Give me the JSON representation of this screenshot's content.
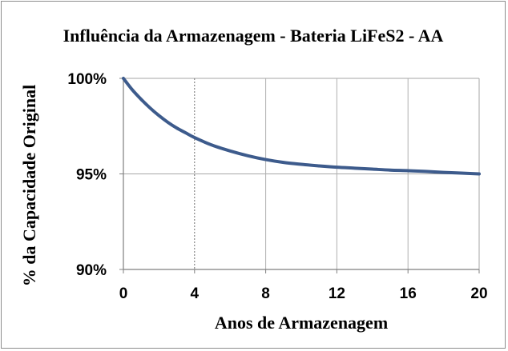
{
  "chart_data": {
    "type": "line",
    "title": "Influência da Armazenagem - Bateria LiFeS2 - AA",
    "xlabel": "Anos de Armazenagem",
    "ylabel": "% da Capacidade Original",
    "xlim": [
      0,
      20
    ],
    "ylim": [
      90,
      100
    ],
    "x_ticks": [
      0,
      4,
      8,
      12,
      16,
      20
    ],
    "x_tick_labels": [
      "0",
      "4",
      "8",
      "12",
      "16",
      "20"
    ],
    "y_ticks": [
      90,
      95,
      100
    ],
    "y_tick_labels": [
      "90%",
      "95%",
      "100%"
    ],
    "grid": "vertical dotted gridlines at each x tick",
    "legend": "none",
    "line_color": "#3d5b8c",
    "series": [
      {
        "x": [
          0,
          0.5,
          1,
          1.5,
          2,
          2.5,
          3,
          3.5,
          4,
          5,
          6,
          7,
          8,
          9,
          10,
          11,
          12,
          13,
          14,
          15,
          16,
          17,
          18,
          19,
          20
        ],
        "y": [
          100,
          99.4,
          98.9,
          98.45,
          98.05,
          97.7,
          97.4,
          97.15,
          96.9,
          96.5,
          96.2,
          95.95,
          95.75,
          95.6,
          95.5,
          95.42,
          95.35,
          95.3,
          95.25,
          95.2,
          95.17,
          95.13,
          95.08,
          95.04,
          95.0
        ]
      }
    ]
  }
}
